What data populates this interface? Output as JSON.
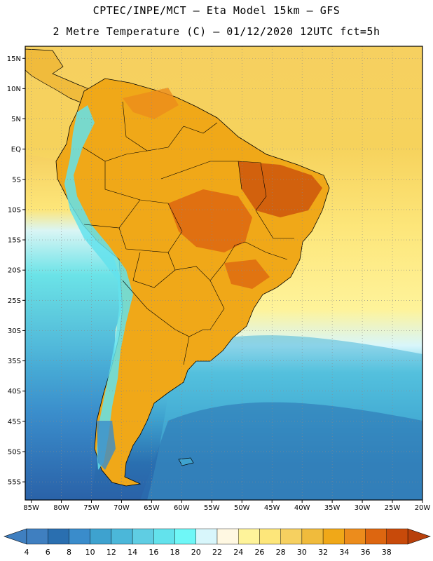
{
  "title": {
    "line1": "CPTEC/INPE/MCT –  Eta Model 15km – GFS",
    "line2": "2 Metre Temperature (C) – 01/12/2020 12UTC fct=5h"
  },
  "axes": {
    "lat_labels": [
      "15N",
      "10N",
      "5N",
      "EQ",
      "5S",
      "10S",
      "15S",
      "20S",
      "25S",
      "30S",
      "35S",
      "40S",
      "45S",
      "50S",
      "55S"
    ],
    "lat_values": [
      15,
      10,
      5,
      0,
      -5,
      -10,
      -15,
      -20,
      -25,
      -30,
      -35,
      -40,
      -45,
      -50,
      -55
    ],
    "lon_labels": [
      "85W",
      "80W",
      "75W",
      "70W",
      "65W",
      "60W",
      "55W",
      "50W",
      "45W",
      "40W",
      "35W",
      "30W",
      "25W",
      "20W"
    ],
    "lon_values": [
      -85,
      -80,
      -75,
      -70,
      -65,
      -60,
      -55,
      -50,
      -45,
      -40,
      -35,
      -30,
      -25,
      -20
    ],
    "lat_range": [
      -58,
      17
    ],
    "lon_range": [
      -86,
      -20
    ]
  },
  "colorbar": {
    "labels": [
      "4",
      "6",
      "8",
      "10",
      "12",
      "14",
      "16",
      "18",
      "20",
      "22",
      "24",
      "26",
      "28",
      "30",
      "32",
      "34",
      "36",
      "38"
    ],
    "colors": [
      "#3f7fc0",
      "#2a6fb0",
      "#3a8ccb",
      "#3ea2cf",
      "#4bb7d9",
      "#5fcde3",
      "#63e2ec",
      "#6ff7f7",
      "#d8f6fb",
      "#fff8e2",
      "#fef39a",
      "#fde67a",
      "#f6d060",
      "#f0bb3c",
      "#f0a818",
      "#ec8c1c",
      "#dd6610",
      "#c84a0a"
    ],
    "low_color": "#3f7fc0",
    "high_color": "#b8400a"
  }
}
